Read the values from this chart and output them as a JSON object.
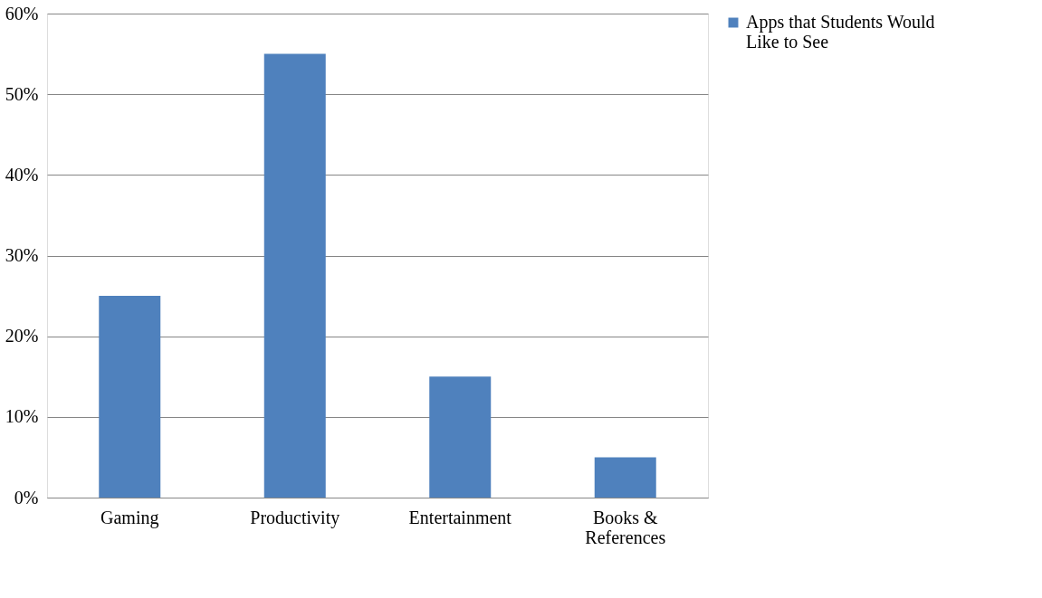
{
  "chart_data": {
    "type": "bar",
    "categories": [
      "Gaming",
      "Productivity",
      "Entertainment",
      "Books & References"
    ],
    "series": [
      {
        "name": "Apps that Students Would Like to See",
        "color": "#4f81bd",
        "values": [
          25,
          55,
          15,
          5
        ]
      }
    ],
    "ylim": [
      0,
      60
    ],
    "yticks": [
      {
        "value": 0,
        "label": "0%"
      },
      {
        "value": 10,
        "label": "10%"
      },
      {
        "value": 20,
        "label": "20%"
      },
      {
        "value": 30,
        "label": "30%"
      },
      {
        "value": 40,
        "label": "40%"
      },
      {
        "value": 50,
        "label": "50%"
      },
      {
        "value": 60,
        "label": "60%"
      }
    ],
    "grid": "y",
    "legend": "right"
  }
}
